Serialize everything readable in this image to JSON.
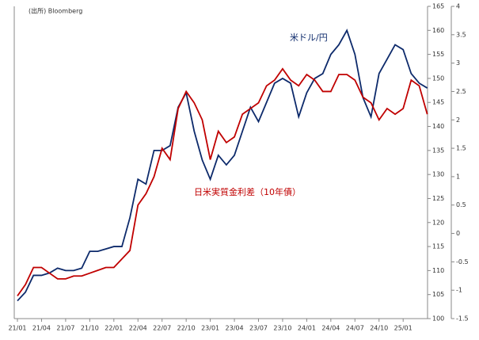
{
  "chart_data": {
    "type": "line",
    "annotations": [
      "(出所) Bloomberg"
    ],
    "categories": [
      "21/01",
      null,
      null,
      "21/04",
      null,
      null,
      "21/07",
      null,
      null,
      "21/10",
      null,
      null,
      "22/01",
      null,
      null,
      "22/04",
      null,
      null,
      "22/07",
      null,
      null,
      "22/10",
      null,
      null,
      "23/01",
      null,
      null,
      "23/04",
      null,
      null,
      "23/07",
      null,
      null,
      "23/10",
      null,
      null,
      "24/01",
      null,
      null,
      "24/04",
      null,
      null,
      "24/07",
      null,
      null,
      "24/10",
      null,
      null,
      "25/01",
      null,
      null,
      null
    ],
    "series": [
      {
        "name": "米ドル/円",
        "color": "#0d2a6b",
        "values": [
          103.7,
          105.5,
          109,
          109,
          109.5,
          110.5,
          110,
          110,
          110.5,
          114,
          114,
          114.5,
          115,
          115,
          121,
          129,
          128,
          135,
          135,
          136,
          144,
          147,
          139,
          133,
          129,
          134,
          132,
          134,
          139,
          144,
          141,
          145,
          149,
          150,
          149,
          142,
          147,
          150,
          151,
          155,
          157,
          160,
          155,
          146,
          142,
          151,
          154,
          157,
          156,
          151,
          149,
          148
        ]
      },
      {
        "name": "日米実質金利差（10年債）",
        "color": "#c00000",
        "axis": "y2",
        "values": [
          -1.1,
          -0.9,
          -0.6,
          -0.6,
          -0.7,
          -0.8,
          -0.8,
          -0.75,
          -0.75,
          -0.7,
          -0.65,
          -0.6,
          -0.6,
          -0.45,
          -0.3,
          0.5,
          0.7,
          1.0,
          1.5,
          1.3,
          2.2,
          2.5,
          2.3,
          2.0,
          1.3,
          1.8,
          1.6,
          1.7,
          2.1,
          2.2,
          2.3,
          2.6,
          2.7,
          2.9,
          2.7,
          2.6,
          2.8,
          2.7,
          2.5,
          2.5,
          2.8,
          2.8,
          2.7,
          2.4,
          2.3,
          2.0,
          2.2,
          2.1,
          2.2,
          2.7,
          2.6,
          2.1
        ]
      }
    ],
    "ylim": [
      100,
      165
    ],
    "yticks": [
      100,
      105,
      110,
      115,
      120,
      125,
      130,
      135,
      140,
      145,
      150,
      155,
      160,
      165
    ],
    "y2lim": [
      -1.5,
      4
    ],
    "y2ticks": [
      -1.5,
      -1,
      -0.5,
      0,
      0.5,
      1,
      1.5,
      2,
      2.5,
      3,
      3.5,
      4
    ]
  }
}
